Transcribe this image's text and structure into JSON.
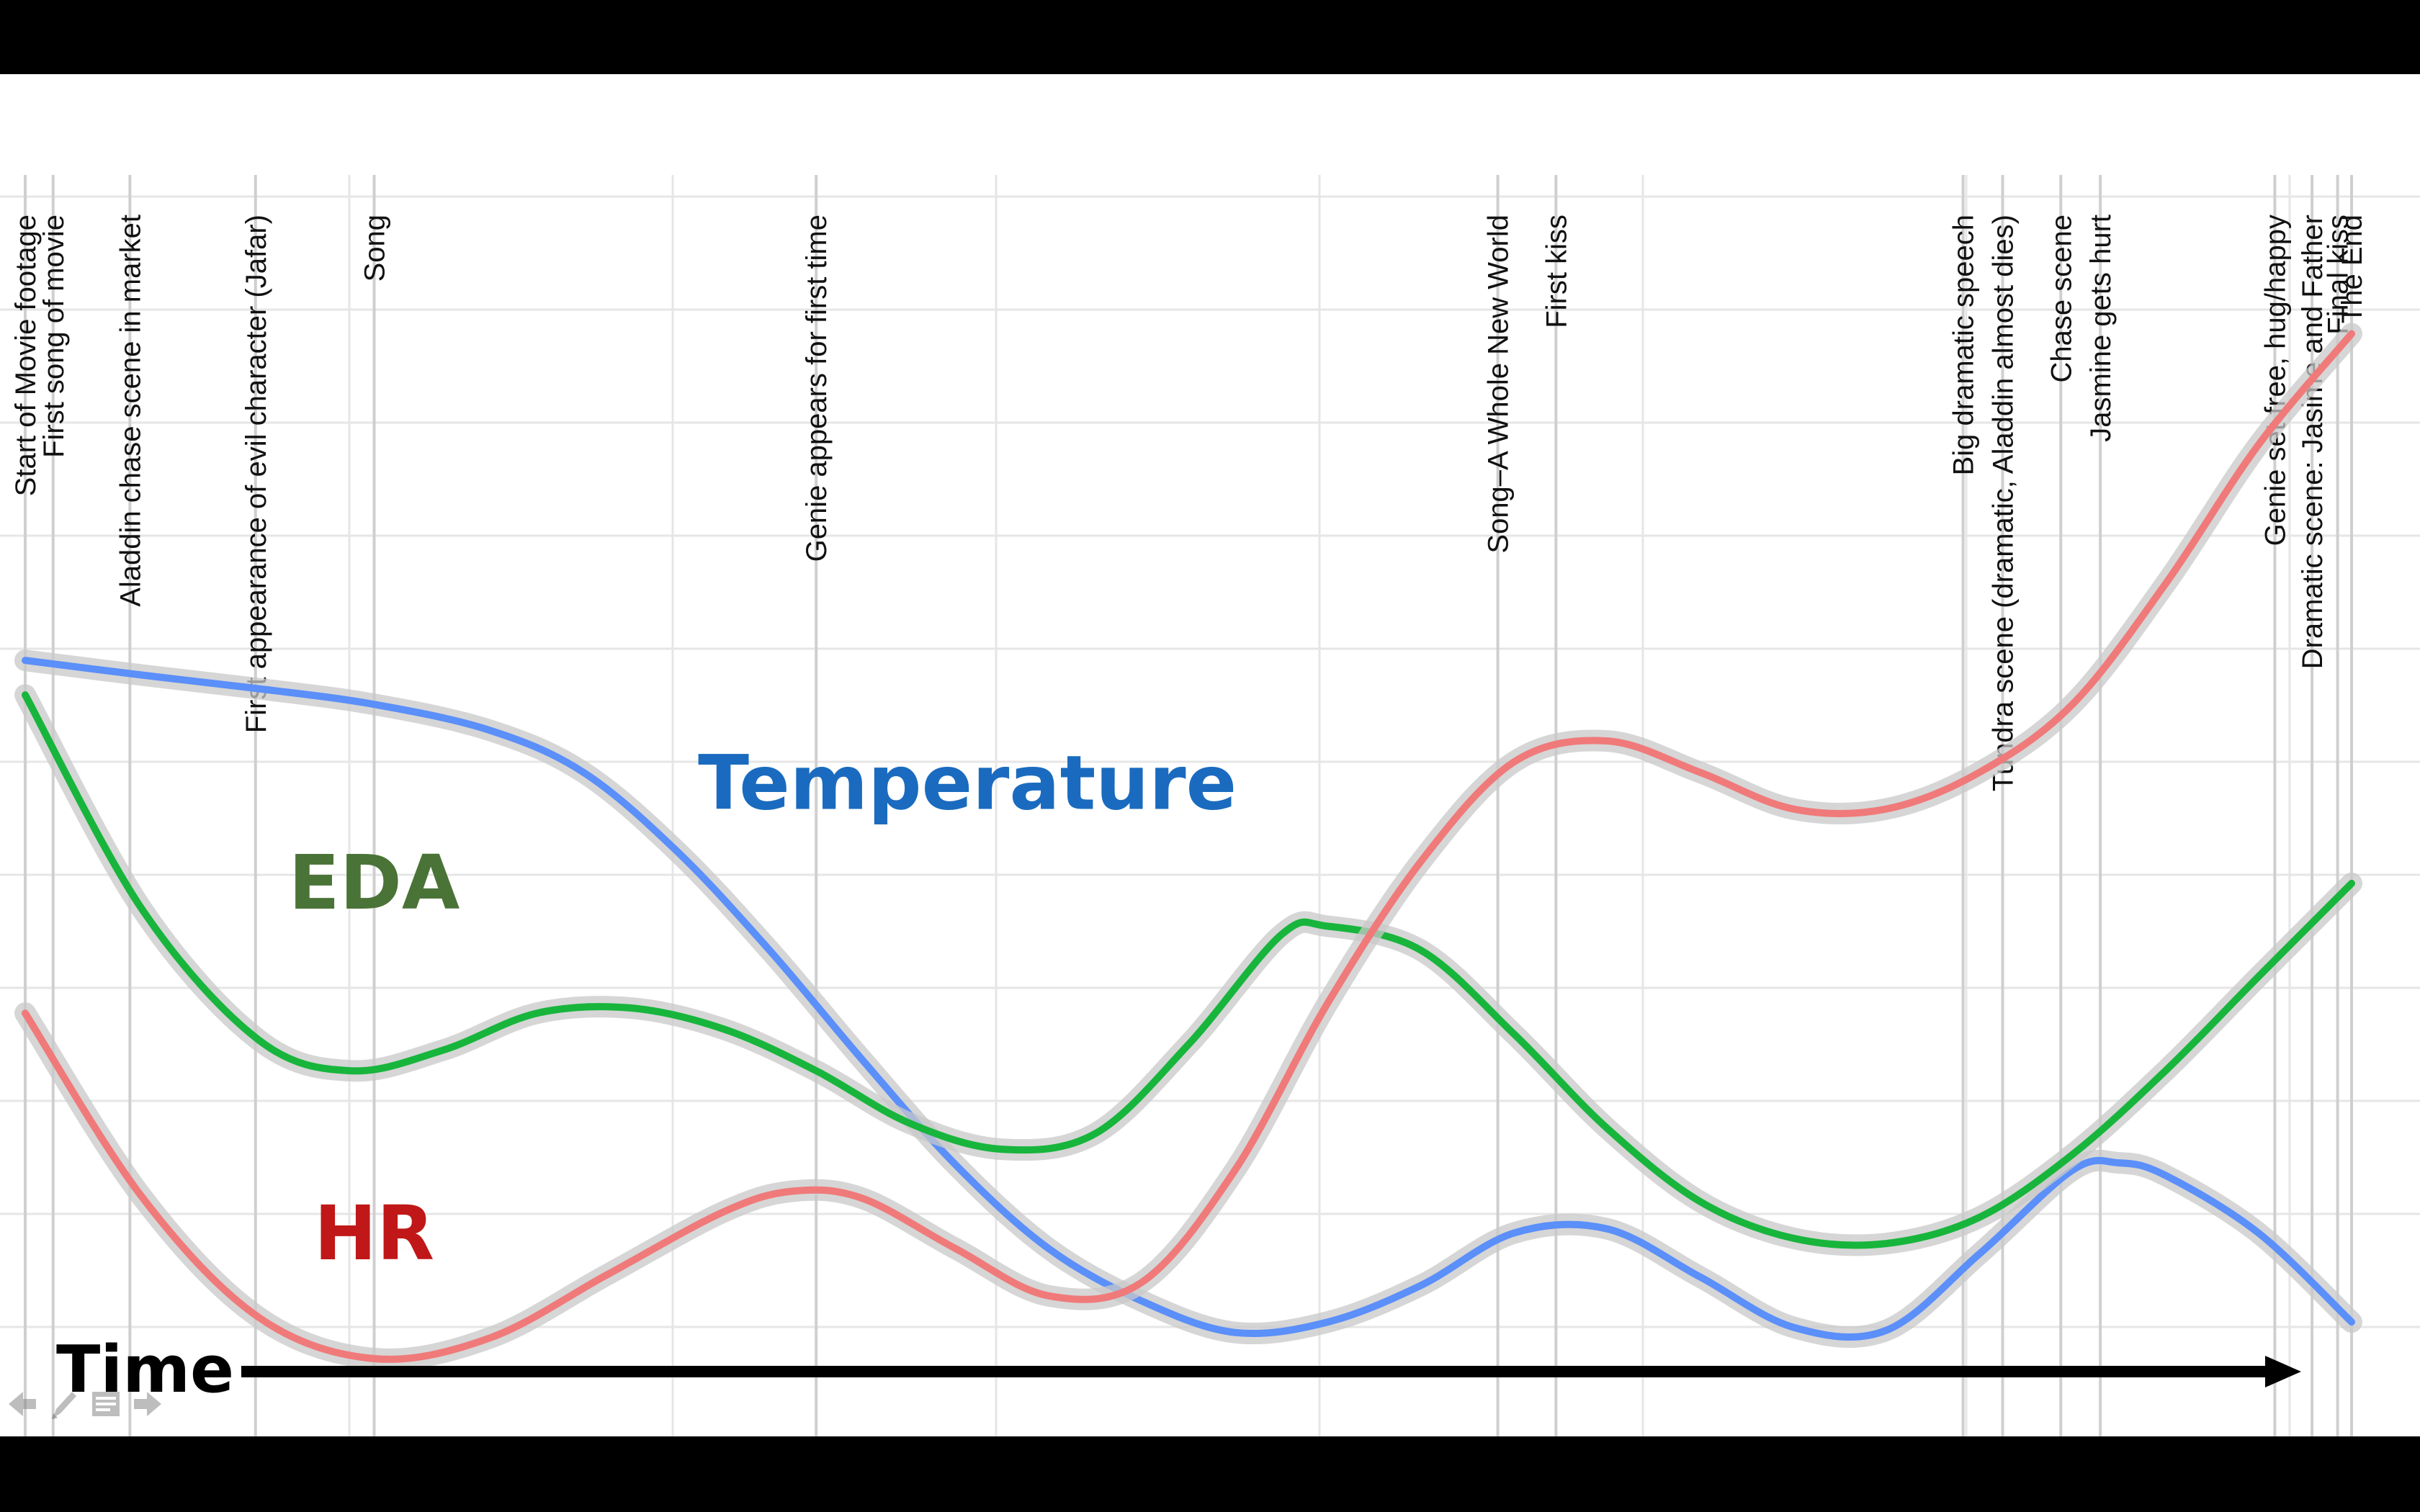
{
  "chart_data": {
    "type": "line",
    "title": "",
    "xlabel": "Time",
    "ylabel": "",
    "xlim": [
      0,
      100
    ],
    "ylim": [
      0,
      100
    ],
    "grid": true,
    "legend": "none (series labels drawn inline on the chart)",
    "events": [
      {
        "label": "Start of Movie footage",
        "x": 0
      },
      {
        "label": "First song of movie",
        "x": 1.2
      },
      {
        "label": "Aladdin chase scene in market",
        "x": 4.5
      },
      {
        "label": "First appearance of evil character (Jafar)",
        "x": 9.9
      },
      {
        "label": "Song",
        "x": 15
      },
      {
        "label": "Genie appears for first time",
        "x": 34
      },
      {
        "label": "Song–A Whole New World",
        "x": 63.3
      },
      {
        "label": "First kiss",
        "x": 65.8
      },
      {
        "label": "Big dramatic speech",
        "x": 83.3
      },
      {
        "label": "Tundra scene (dramatic, Aladdin almost dies)",
        "x": 85
      },
      {
        "label": "Chase scene",
        "x": 87.5
      },
      {
        "label": "Jasmine gets hurt",
        "x": 89.2
      },
      {
        "label": "Genie set free, hug/happy",
        "x": 96.7
      },
      {
        "label": "Dramatic scene: Jasime and Father",
        "x": 98.3
      },
      {
        "label": "Final kiss",
        "x": 99.4
      },
      {
        "label": "The End",
        "x": 100
      }
    ],
    "series": [
      {
        "name": "Temperature",
        "color": "#5b8ff9",
        "label_color": "#1a6bbf",
        "label_x": 40.5,
        "label_y": 52.5,
        "x": [
          0,
          5,
          10,
          15,
          20,
          24,
          28,
          32,
          36,
          40,
          44,
          48,
          52,
          56,
          60,
          64,
          68,
          72,
          76,
          80,
          84,
          88,
          90,
          92,
          96,
          100
        ],
        "y": [
          66.7,
          65.3,
          64,
          62.5,
          60,
          56,
          48.5,
          39,
          28.5,
          18.5,
          10.5,
          5.5,
          2.5,
          3.5,
          7,
          12,
          12.4,
          7.8,
          3,
          2.7,
          10,
          18,
          18.7,
          17.5,
          12,
          3.5
        ]
      },
      {
        "name": "EDA",
        "color": "#18b53c",
        "label_color": "#4a7337",
        "label_x": 15,
        "label_y": 43,
        "x": [
          0,
          5,
          10,
          14,
          18,
          22,
          26,
          30,
          34,
          38,
          42,
          46,
          50,
          54,
          56,
          60,
          64,
          68,
          72,
          76,
          80,
          84,
          88,
          92,
          96,
          100
        ],
        "y": [
          63.4,
          43,
          30.5,
          27.5,
          29.5,
          33,
          33.5,
          31.5,
          27.5,
          22.5,
          20,
          21.5,
          30,
          40.5,
          41.3,
          39,
          31,
          22,
          15,
          11.5,
          11,
          13.5,
          19.5,
          27.5,
          36.5,
          45.4
        ]
      },
      {
        "name": "HR",
        "color": "#f07a7a",
        "label_color": "#c01818",
        "label_x": 15,
        "label_y": 9.5,
        "x": [
          0,
          5,
          10,
          15,
          20,
          25,
          30,
          33,
          36,
          40,
          44,
          48,
          52,
          56,
          60,
          64,
          68,
          72,
          76,
          80,
          84,
          88,
          92,
          96,
          100
        ],
        "y": [
          33,
          15.5,
          4,
          0,
          2,
          8,
          14,
          16,
          15.3,
          10.5,
          6,
          7.3,
          18,
          34,
          47.5,
          57,
          59,
          56,
          52.5,
          52.5,
          56,
          62.5,
          74,
          87.3,
          97.9
        ]
      }
    ]
  }
}
